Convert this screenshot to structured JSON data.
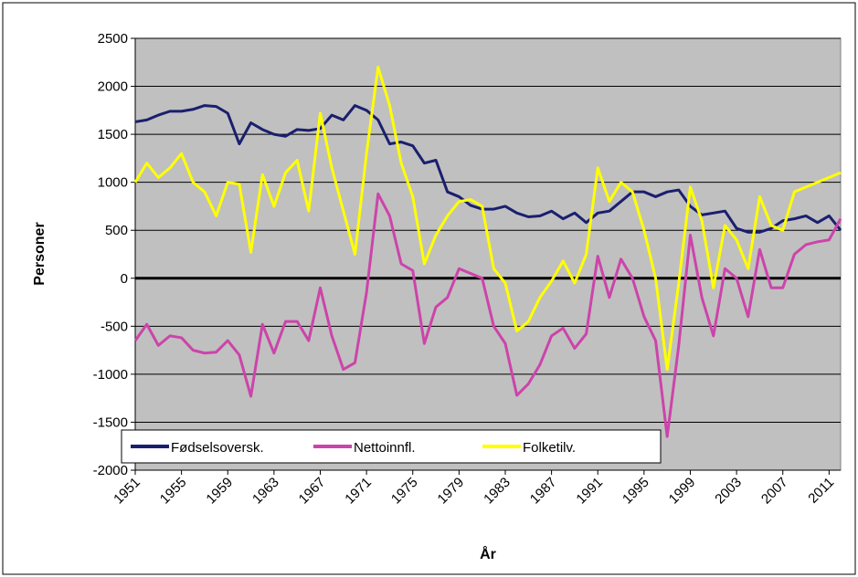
{
  "chart_data": {
    "type": "line",
    "x_label": "År",
    "y_label": "Personer",
    "x": [
      1951,
      1952,
      1953,
      1954,
      1955,
      1956,
      1957,
      1958,
      1959,
      1960,
      1961,
      1962,
      1963,
      1964,
      1965,
      1966,
      1967,
      1968,
      1969,
      1970,
      1971,
      1972,
      1973,
      1974,
      1975,
      1976,
      1977,
      1978,
      1979,
      1980,
      1981,
      1982,
      1983,
      1984,
      1985,
      1986,
      1987,
      1988,
      1989,
      1990,
      1991,
      1992,
      1993,
      1994,
      1995,
      1996,
      1997,
      1998,
      1999,
      2000,
      2001,
      2002,
      2003,
      2004,
      2005,
      2006,
      2007,
      2008,
      2009,
      2010,
      2011,
      2012
    ],
    "series": [
      {
        "name": "Fødselsoversk.",
        "color": "#1a1f6e",
        "values": [
          1630,
          1650,
          1700,
          1740,
          1740,
          1760,
          1800,
          1790,
          1720,
          1400,
          1620,
          1550,
          1500,
          1480,
          1550,
          1540,
          1560,
          1700,
          1650,
          1800,
          1750,
          1650,
          1400,
          1420,
          1380,
          1200,
          1230,
          900,
          850,
          760,
          720,
          720,
          750,
          680,
          640,
          650,
          700,
          620,
          680,
          580,
          680,
          700,
          800,
          900,
          900,
          850,
          900,
          920,
          750,
          660,
          680,
          700,
          520,
          480,
          480,
          520,
          600,
          620,
          650,
          580,
          650,
          500
        ]
      },
      {
        "name": "Nettoinnfl.",
        "color": "#cc44aa",
        "values": [
          -650,
          -480,
          -700,
          -600,
          -620,
          -750,
          -780,
          -770,
          -650,
          -800,
          -1230,
          -480,
          -780,
          -450,
          -450,
          -650,
          -100,
          -600,
          -950,
          -880,
          -150,
          880,
          650,
          150,
          80,
          -680,
          -300,
          -200,
          100,
          50,
          0,
          -500,
          -680,
          -1220,
          -1100,
          -900,
          -600,
          -520,
          -730,
          -580,
          230,
          -200,
          200,
          0,
          -400,
          -650,
          -1650,
          -700,
          450,
          -200,
          -600,
          100,
          0,
          -400,
          300,
          -100,
          -100,
          250,
          350,
          380,
          400,
          620
        ]
      },
      {
        "name": "Folketilv.",
        "color": "#ffff00",
        "values": [
          1000,
          1200,
          1050,
          1150,
          1300,
          1000,
          900,
          650,
          1000,
          980,
          270,
          1080,
          750,
          1100,
          1230,
          700,
          1720,
          1150,
          700,
          250,
          1300,
          2200,
          1800,
          1200,
          850,
          150,
          450,
          650,
          800,
          820,
          750,
          100,
          -50,
          -550,
          -450,
          -200,
          -30,
          180,
          -50,
          250,
          1150,
          800,
          1000,
          900,
          500,
          0,
          -950,
          -50,
          950,
          600,
          -100,
          550,
          400,
          100,
          850,
          550,
          500,
          900,
          950,
          1000,
          1050,
          1100
        ]
      }
    ],
    "xlim": [
      1951,
      2012
    ],
    "xticks": [
      1951,
      1955,
      1959,
      1963,
      1967,
      1971,
      1975,
      1979,
      1983,
      1987,
      1991,
      1995,
      1999,
      2003,
      2007,
      2011
    ],
    "ylim": [
      -2000,
      2500
    ],
    "yticks": [
      -2000,
      -1500,
      -1000,
      -500,
      0,
      500,
      1000,
      1500,
      2000,
      2500
    ],
    "grid": true,
    "legend": "bottom-left"
  }
}
